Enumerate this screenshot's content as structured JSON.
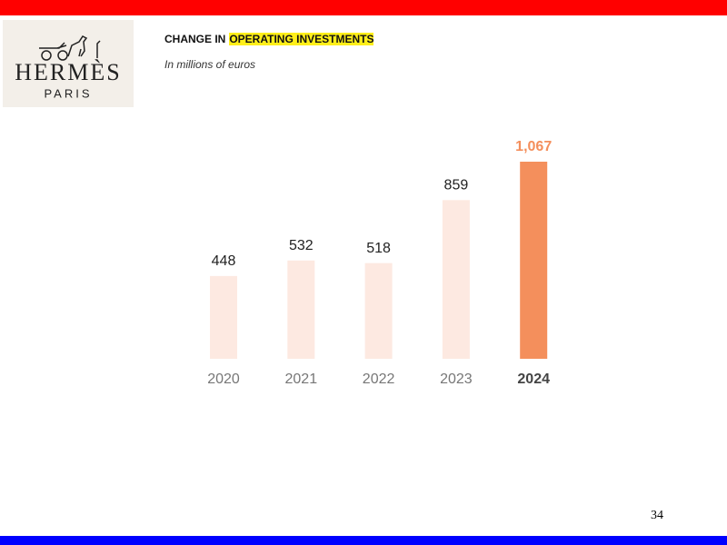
{
  "logo": {
    "brand": "HERMÈS",
    "city": "PARIS"
  },
  "chart_data": {
    "type": "bar",
    "title_lead": "CHANGE IN",
    "title_highlight": "OPERATING INVESTMENTS",
    "subtitle": "In millions of euros",
    "categories": [
      "2020",
      "2021",
      "2022",
      "2023",
      "2024"
    ],
    "values": [
      448,
      532,
      518,
      859,
      1067
    ],
    "value_labels": [
      "448",
      "532",
      "518",
      "859",
      "1,067"
    ],
    "colors": [
      "#fde9e1",
      "#fde9e1",
      "#fde9e1",
      "#fde9e1",
      "#f48f5c"
    ],
    "label_colors": [
      "#222222",
      "#222222",
      "#222222",
      "#222222",
      "#f48f5c"
    ],
    "emphasis": [
      false,
      false,
      false,
      false,
      true
    ]
  },
  "page_number": "34"
}
